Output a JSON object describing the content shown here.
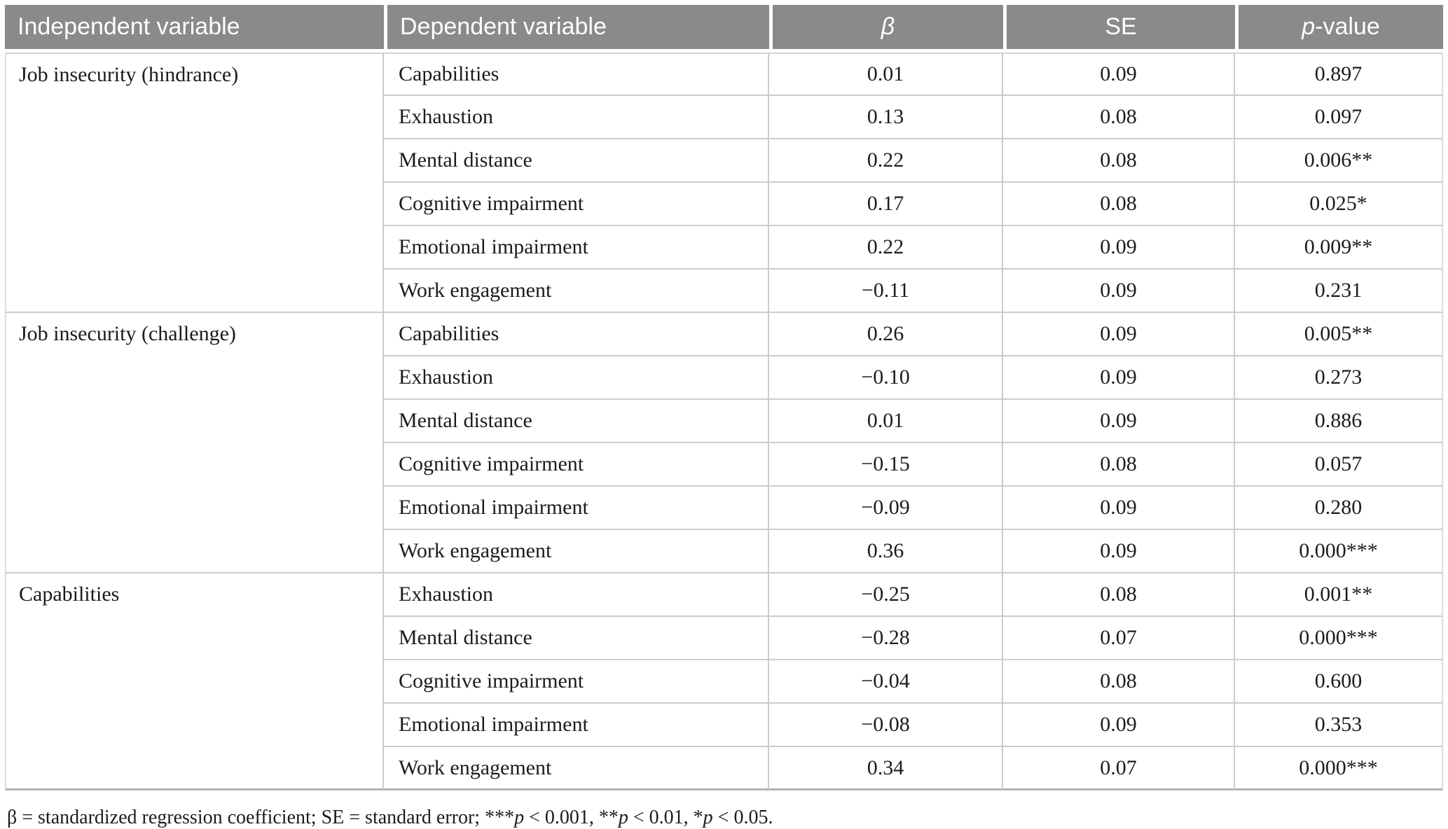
{
  "colors": {
    "header_bg": "#8a8a8a",
    "header_text": "#ffffff",
    "body_text": "#1c1c1c",
    "grid_line": "#cccccc",
    "bottom_rule": "#b3b3b3"
  },
  "table": {
    "columns": [
      {
        "id": "independent",
        "label": "Independent variable",
        "align": "left"
      },
      {
        "id": "dependent",
        "label": "Dependent variable",
        "align": "left"
      },
      {
        "id": "beta",
        "label": "β",
        "align": "center",
        "italic": true
      },
      {
        "id": "se",
        "label": "SE",
        "align": "center"
      },
      {
        "id": "pvalue",
        "align": "center",
        "label_segments": [
          {
            "text": "p",
            "italic": true
          },
          {
            "text": "-value",
            "italic": false
          }
        ]
      }
    ],
    "groups": [
      {
        "independent": "Job insecurity (hindrance)",
        "rows": [
          {
            "dependent": "Capabilities",
            "beta": "0.01",
            "se": "0.09",
            "p": "0.897"
          },
          {
            "dependent": "Exhaustion",
            "beta": "0.13",
            "se": "0.08",
            "p": "0.097"
          },
          {
            "dependent": "Mental distance",
            "beta": "0.22",
            "se": "0.08",
            "p": "0.006**"
          },
          {
            "dependent": "Cognitive impairment",
            "beta": "0.17",
            "se": "0.08",
            "p": "0.025*"
          },
          {
            "dependent": "Emotional impairment",
            "beta": "0.22",
            "se": "0.09",
            "p": "0.009**"
          },
          {
            "dependent": "Work engagement",
            "beta": "−0.11",
            "se": "0.09",
            "p": "0.231"
          }
        ]
      },
      {
        "independent": "Job insecurity (challenge)",
        "rows": [
          {
            "dependent": "Capabilities",
            "beta": "0.26",
            "se": "0.09",
            "p": "0.005**"
          },
          {
            "dependent": "Exhaustion",
            "beta": "−0.10",
            "se": "0.09",
            "p": "0.273"
          },
          {
            "dependent": "Mental distance",
            "beta": "0.01",
            "se": "0.09",
            "p": "0.886"
          },
          {
            "dependent": "Cognitive impairment",
            "beta": "−0.15",
            "se": "0.08",
            "p": "0.057"
          },
          {
            "dependent": "Emotional impairment",
            "beta": "−0.09",
            "se": "0.09",
            "p": "0.280"
          },
          {
            "dependent": "Work engagement",
            "beta": "0.36",
            "se": "0.09",
            "p": "0.000***"
          }
        ]
      },
      {
        "independent": "Capabilities",
        "rows": [
          {
            "dependent": "Exhaustion",
            "beta": "−0.25",
            "se": "0.08",
            "p": "0.001**"
          },
          {
            "dependent": "Mental distance",
            "beta": "−0.28",
            "se": "0.07",
            "p": "0.000***"
          },
          {
            "dependent": "Cognitive impairment",
            "beta": "−0.04",
            "se": "0.08",
            "p": "0.600"
          },
          {
            "dependent": "Emotional impairment",
            "beta": "−0.08",
            "se": "0.09",
            "p": "0.353"
          },
          {
            "dependent": "Work engagement",
            "beta": "0.34",
            "se": "0.07",
            "p": "0.000***"
          }
        ]
      }
    ]
  },
  "footnote": {
    "segments": [
      {
        "text": "β = standardized regression coefficient; SE = standard error; ***",
        "italic": false
      },
      {
        "text": "p",
        "italic": true
      },
      {
        "text": " < 0.001, **",
        "italic": false
      },
      {
        "text": "p",
        "italic": true
      },
      {
        "text": " < 0.01, *",
        "italic": false
      },
      {
        "text": "p",
        "italic": true
      },
      {
        "text": " < 0.05.",
        "italic": false
      }
    ]
  }
}
